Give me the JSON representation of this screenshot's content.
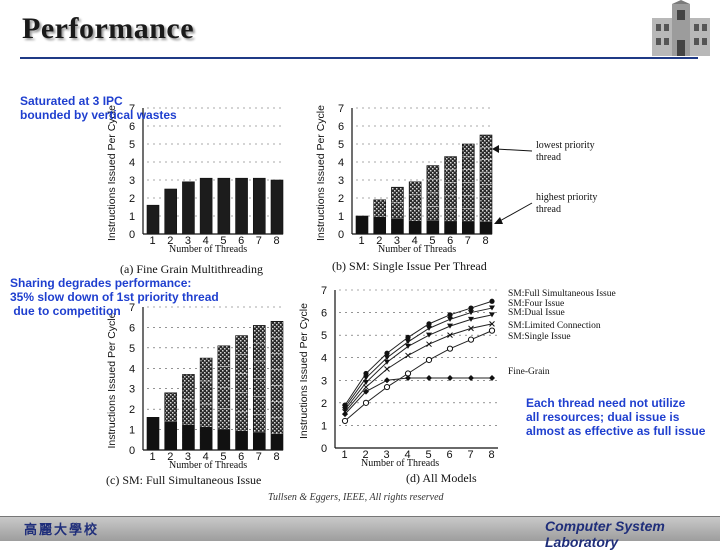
{
  "slide": {
    "title": "Performance",
    "note_saturated": "Saturated at 3 IPC\nbounded by vertical wastes",
    "note_sharing": "Sharing degrades performance:\n35% slow down of 1st priority thread\n due to competition",
    "note_each": "Each thread need not utilize\nall resources; dual issue is\nalmost as effective as full issue",
    "credit": "Tullsen & Eggers, IEEE, All rights reserved",
    "footer_school": "高麗大學校",
    "footer_lab": "Computer System Laboratory"
  },
  "colors": {
    "title_rule": "#1f3a86",
    "note_text": "#1f3fcf",
    "footer_text": "#1f2e7a"
  },
  "charts": {
    "a": {
      "caption": "(a)  Fine Grain Multithreading"
    },
    "b": {
      "caption": "(b)  SM: Single Issue Per Thread",
      "label_lowest": "lowest  priority\nthread",
      "label_highest": "highest  priority\nthread"
    },
    "c": {
      "caption": "(c)  SM:  Full Simultaneous Issue"
    },
    "d": {
      "caption": "(d)  All Models"
    },
    "ylabel": "Instructions  Issued  Per  Cycle",
    "xlabel": "Number of Threads"
  },
  "chart_data": [
    {
      "id": "a",
      "type": "bar",
      "title": "(a)  Fine Grain Multithreading",
      "xlabel": "Number of Threads",
      "ylabel": "Instructions  Issued  Per  Cycle",
      "categories": [
        "1",
        "2",
        "3",
        "4",
        "5",
        "6",
        "7",
        "8"
      ],
      "values": [
        1.6,
        2.5,
        2.9,
        3.1,
        3.1,
        3.1,
        3.1,
        3.0
      ],
      "ylim": [
        0,
        7
      ]
    },
    {
      "id": "b",
      "type": "bar",
      "title": "(b)  SM: Single Issue Per Thread",
      "xlabel": "Number of Threads",
      "ylabel": "Instructions  Issued  Per  Cycle",
      "categories": [
        "1",
        "2",
        "3",
        "4",
        "5",
        "6",
        "7",
        "8"
      ],
      "values": [
        1.0,
        1.9,
        2.6,
        2.9,
        3.8,
        4.3,
        5.0,
        5.5
      ],
      "ylim": [
        0,
        7
      ]
    },
    {
      "id": "c",
      "type": "bar",
      "title": "(c)  SM:  Full Simultaneous Issue",
      "xlabel": "Number of Threads",
      "ylabel": "Instructions  Issued  Per  Cycle",
      "categories": [
        "1",
        "2",
        "3",
        "4",
        "5",
        "6",
        "7",
        "8"
      ],
      "values": [
        1.6,
        2.8,
        3.7,
        4.5,
        5.1,
        5.6,
        6.1,
        6.3
      ],
      "ylim": [
        0,
        7
      ]
    },
    {
      "id": "d",
      "type": "line",
      "title": "(d)  All Models",
      "xlabel": "Number of Threads",
      "ylabel": "Instructions  Issued  Per  Cycle",
      "x": [
        1,
        2,
        3,
        4,
        5,
        6,
        7,
        8
      ],
      "ylim": [
        0,
        7
      ],
      "series": [
        {
          "name": "SM:Full Simultaneous Issue",
          "marker": "dot",
          "values": [
            1.9,
            3.3,
            4.2,
            4.9,
            5.5,
            5.9,
            6.2,
            6.5
          ]
        },
        {
          "name": "SM:Four Issue",
          "marker": "tri",
          "values": [
            1.8,
            3.1,
            4.0,
            4.7,
            5.3,
            5.7,
            6.0,
            6.2
          ]
        },
        {
          "name": "SM:Dual Issue",
          "marker": "tri",
          "values": [
            1.7,
            2.9,
            3.8,
            4.5,
            5.0,
            5.4,
            5.7,
            5.9
          ]
        },
        {
          "name": "SM:Limited Connection",
          "marker": "x",
          "values": [
            1.6,
            2.7,
            3.5,
            4.1,
            4.6,
            5.0,
            5.3,
            5.5
          ]
        },
        {
          "name": "SM:Single Issue",
          "marker": "circle",
          "values": [
            1.2,
            2.0,
            2.7,
            3.3,
            3.9,
            4.4,
            4.8,
            5.2
          ]
        },
        {
          "name": "Fine-Grain",
          "marker": "diamond",
          "values": [
            1.5,
            2.5,
            3.0,
            3.1,
            3.1,
            3.1,
            3.1,
            3.1
          ]
        }
      ]
    }
  ]
}
